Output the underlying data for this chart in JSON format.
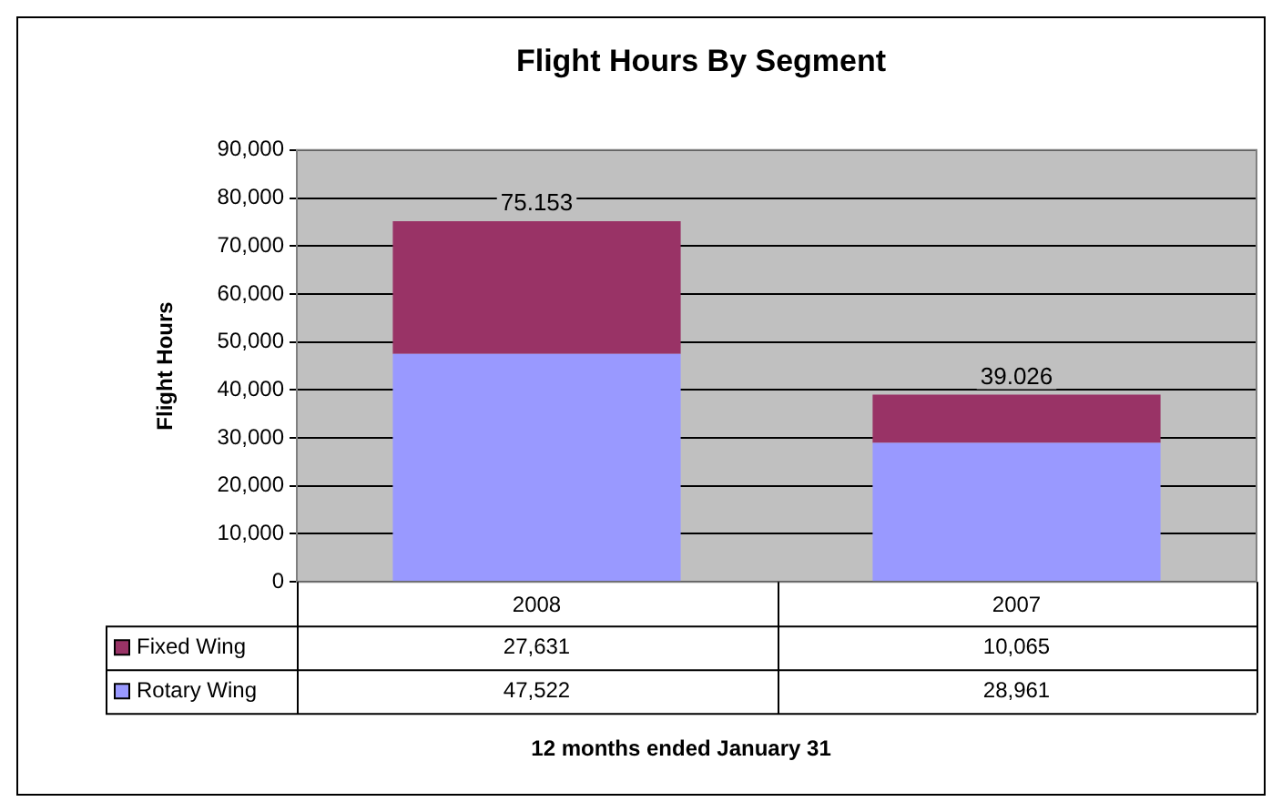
{
  "chart_data": {
    "type": "bar",
    "title": "Flight Hours By Segment",
    "ylabel": "Flight Hours",
    "categories": [
      "2008",
      "2007"
    ],
    "stacked": true,
    "series": [
      {
        "name": "Rotary Wing",
        "color": "#9999ff",
        "values": [
          47522,
          28961
        ],
        "value_labels": [
          "47,522",
          "28,961"
        ]
      },
      {
        "name": "Fixed Wing",
        "color": "#993366",
        "values": [
          27631,
          10065
        ],
        "value_labels": [
          "27,631",
          "10,065"
        ]
      }
    ],
    "annotations": [
      "12 months ended January 31",
      {
        "text": "75.153",
        "x": "2008",
        "y": 75153
      },
      {
        "text": "39.026",
        "x": "2007",
        "y": 39026
      }
    ],
    "ylim": [
      0,
      90000
    ],
    "yticks": [
      {
        "value": 0,
        "label": "0"
      },
      {
        "value": 10000,
        "label": "10,000"
      },
      {
        "value": 20000,
        "label": "20,000"
      },
      {
        "value": 30000,
        "label": "30,000"
      },
      {
        "value": 40000,
        "label": "40,000"
      },
      {
        "value": 50000,
        "label": "50,000"
      },
      {
        "value": 60000,
        "label": "60,000"
      },
      {
        "value": 70000,
        "label": "70,000"
      },
      {
        "value": 80000,
        "label": "80,000"
      },
      {
        "value": 90000,
        "label": "90,000"
      }
    ],
    "grid": "y",
    "legend": "bottom"
  }
}
